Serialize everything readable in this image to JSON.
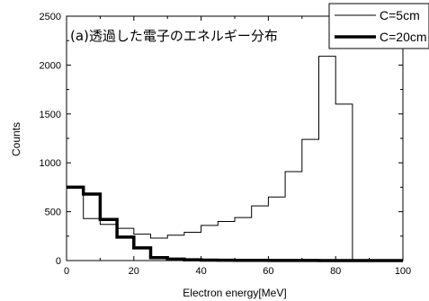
{
  "chart_data": {
    "type": "histogram",
    "annotation": "(a)透過した電子のエネルギー分布",
    "xlabel": "Electron energy[MeV]",
    "ylabel": "Counts",
    "xlim": [
      0,
      100
    ],
    "ylim": [
      0,
      2500
    ],
    "xticks": [
      0,
      20,
      40,
      60,
      80,
      100
    ],
    "yticks": [
      0,
      500,
      1000,
      1500,
      2000,
      2500
    ],
    "grid": false,
    "legend_position": "top-right",
    "bin_edges": [
      0,
      5,
      10,
      15,
      20,
      25,
      30,
      35,
      40,
      45,
      50,
      55,
      60,
      65,
      70,
      75,
      80,
      85,
      90,
      95,
      100
    ],
    "series": [
      {
        "name": "C=5cm",
        "color": "#000000",
        "style": "thin",
        "values": [
          760,
          430,
          370,
          330,
          270,
          230,
          260,
          290,
          360,
          400,
          440,
          560,
          650,
          910,
          1240,
          2090,
          1600,
          0,
          0,
          0
        ]
      },
      {
        "name": "C=20cm",
        "color": "#000000",
        "style": "thick",
        "values": [
          750,
          680,
          420,
          240,
          130,
          30,
          15,
          8,
          5,
          3,
          2,
          2,
          1,
          1,
          1,
          0,
          0,
          0,
          0,
          0
        ]
      }
    ]
  }
}
